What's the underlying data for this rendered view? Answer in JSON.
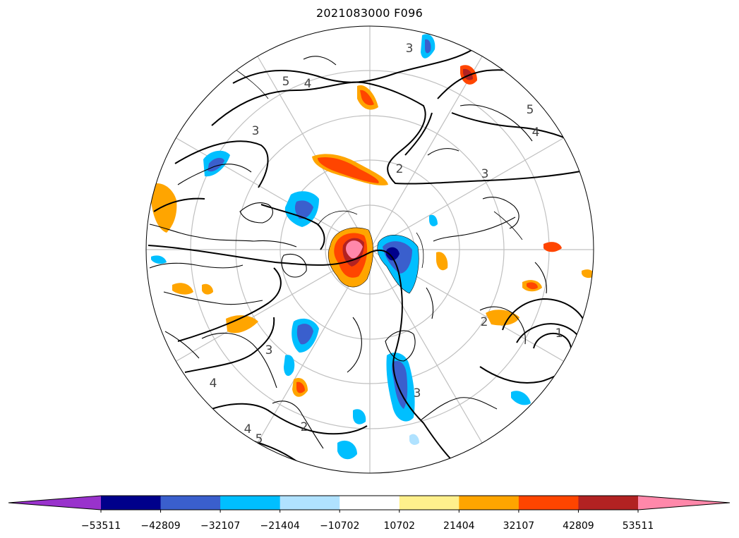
{
  "title": "2021083000 F096",
  "colorbar": {
    "ticks": [
      "−53511",
      "−42809",
      "−32107",
      "−21404",
      "−10702",
      "10702",
      "21404",
      "32107",
      "42809",
      "53511"
    ],
    "under_color": "#9932cc",
    "over_color": "#ff88aa",
    "bin_colors": [
      "#00008b",
      "#3a5fcd",
      "#00bfff",
      "#b0e2ff",
      "#ffffff",
      "#fff08c",
      "#ffa500",
      "#ff4500",
      "#b22222"
    ]
  },
  "contour_labels": [
    "5",
    "4",
    "3",
    "3",
    "2",
    "5",
    "4",
    "3",
    "3",
    "2",
    "3",
    "4",
    "5",
    "4",
    "2",
    "1"
  ],
  "map": {
    "projection": "north-polar-stereographic",
    "graticule": true,
    "coastlines": true,
    "borders": true
  }
}
